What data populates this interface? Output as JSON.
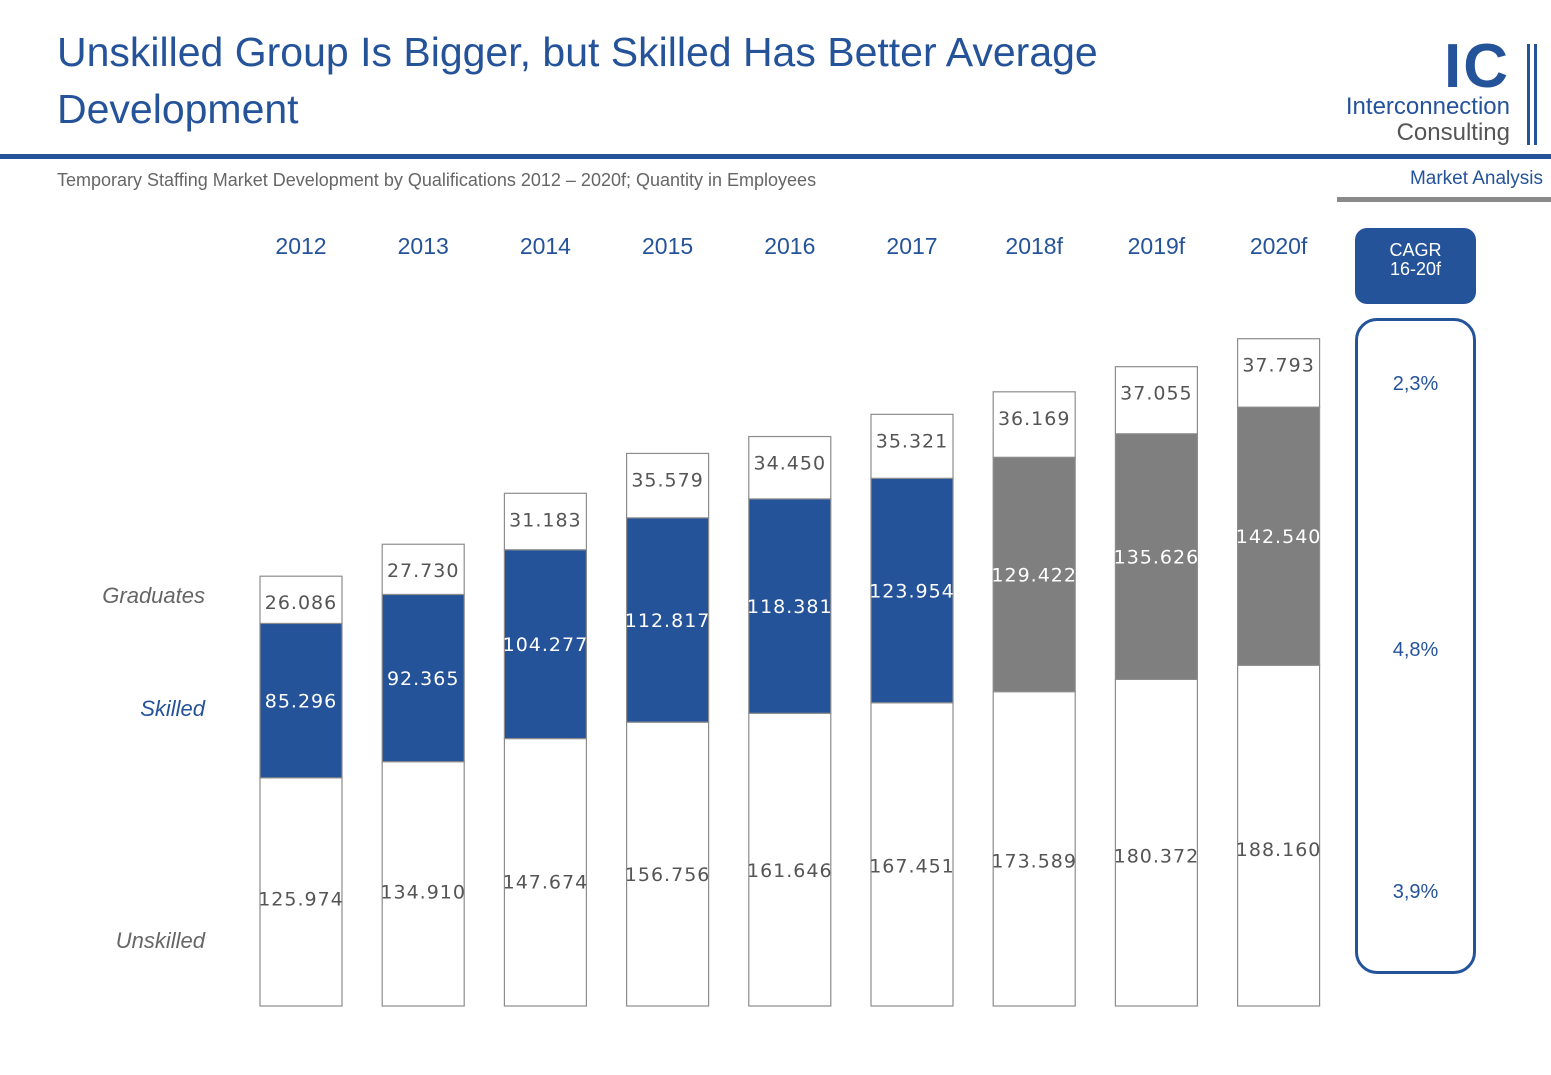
{
  "header": {
    "title": "Unskilled Group Is Bigger, but Skilled Has Better Average Development",
    "subtitle": "Temporary Staffing Market Development by Qualifications 2012 – 2020f; Quantity in  Employees",
    "tag": "Market Analysis"
  },
  "logo": {
    "letters": "IC",
    "line1": "Interconnection",
    "line2": "Consulting"
  },
  "cagr": {
    "label_line1": "CAGR",
    "label_line2": "16-20f",
    "graduates": "2,3%",
    "skilled": "4,8%",
    "unskilled": "3,9%"
  },
  "colors": {
    "brand_blue": "#25539a",
    "forecast_gray": "#7f7f7f",
    "border_gray": "#8c8c8c"
  },
  "chart_data": {
    "type": "bar",
    "stacked": true,
    "categories": [
      "2012",
      "2013",
      "2014",
      "2015",
      "2016",
      "2017",
      "2018f",
      "2019f",
      "2020f"
    ],
    "series": [
      {
        "name": "Unskilled",
        "values": [
          125974,
          134910,
          147674,
          156756,
          161646,
          167451,
          173589,
          180372,
          188160
        ],
        "labels": [
          "125.974",
          "134.910",
          "147.674",
          "156.756",
          "161.646",
          "167.451",
          "173.589",
          "180.372",
          "188.160"
        ]
      },
      {
        "name": "Skilled",
        "values": [
          85296,
          92365,
          104277,
          112817,
          118381,
          123954,
          129422,
          135626,
          142540
        ],
        "labels": [
          "85.296",
          "92.365",
          "104.277",
          "112.817",
          "118.381",
          "123.954",
          "129.422",
          "135.626",
          "142.540"
        ]
      },
      {
        "name": "Graduates",
        "values": [
          26086,
          27730,
          31183,
          35579,
          34450,
          35321,
          36169,
          37055,
          37793
        ],
        "labels": [
          "26.086",
          "27.730",
          "31.183",
          "35.579",
          "34.450",
          "35.321",
          "36.169",
          "37.055",
          "37.793"
        ]
      }
    ],
    "forecast_categories": [
      "2018f",
      "2019f",
      "2020f"
    ],
    "ylim": [
      0,
      370000
    ],
    "grid": false,
    "legend": "left"
  }
}
